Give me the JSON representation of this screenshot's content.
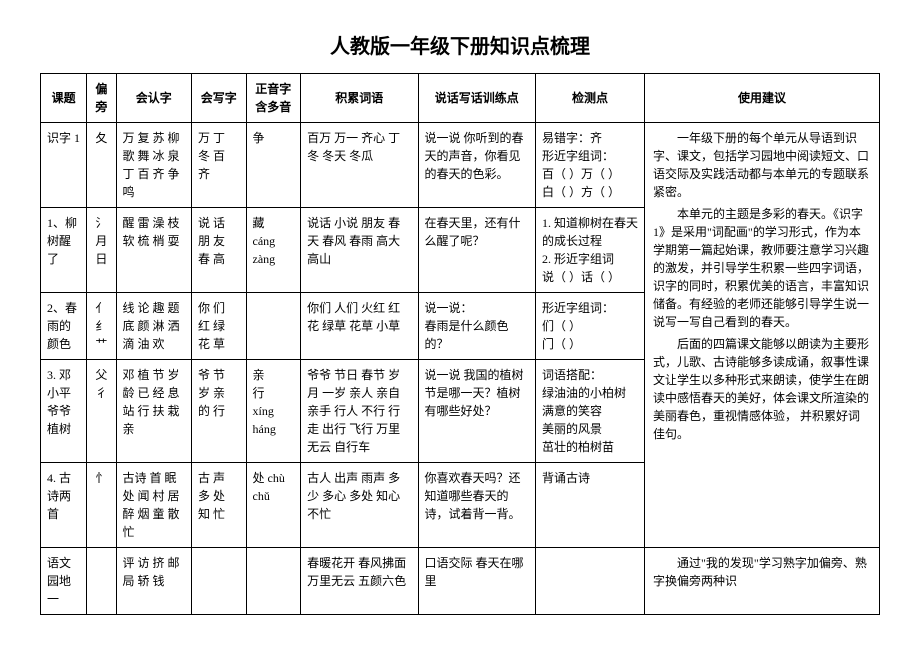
{
  "title": "人教版一年级下册知识点梳理",
  "headers": {
    "lesson": "课题",
    "radical": "偏旁",
    "recognize": "会认字",
    "write": "会写字",
    "pinyin": "正音字含多音",
    "words": "积累词语",
    "practice": "说话写话训练点",
    "check": "检测点",
    "suggest": "使用建议"
  },
  "rows": [
    {
      "lesson": "识字 1",
      "radical": "夂",
      "recognize": "万 复 苏 柳 歌 舞 冰 泉 丁 百 齐 争 鸣",
      "write": "万 丁 冬 百 齐",
      "pinyin": "争",
      "words": "百万 万一 齐心 丁冬 冬天 冬瓜",
      "practice": "说一说 你听到的春天的声音，你看见的春天的色彩。",
      "check": "易错字：齐\n形近字组词：\n百（  ）万（  ）\n白（  ）方（  ）"
    },
    {
      "lesson": "1、柳树醒了",
      "radical": "氵\n月\n日",
      "recognize": "醒 雷 澡 枝 软 梳 梢 耍",
      "write": "说 话 朋 友 春 高",
      "pinyin": "藏\ncáng\n  zàng",
      "words": "说话 小说 朋友 春天 春风 春雨 高大 高山",
      "practice": "在春天里，还有什么醒了呢？",
      "check": "1. 知道柳树在春天的成长过程\n2. 形近字组词\n说（  ）话（  ）"
    },
    {
      "lesson": "2、春雨的颜色",
      "radical": "亻\n纟\n艹",
      "recognize": "线 论 趣 题 底 颜 淋 洒 滴 油 欢",
      "write": "你 们 红 绿 花 草",
      "pinyin": "",
      "words": "你们 人们 火红 红花 绿草 花草 小草",
      "practice": "说一说：\n春雨是什么颜色的？",
      "check": "形近字组词：\n们（  ）\n门（  ）"
    },
    {
      "lesson": "3. 邓小平爷爷植树",
      "radical": "父\n彳",
      "recognize": "邓 植 节 岁 龄 已 经 息 站 行 扶 栽 亲",
      "write": "爷 节 岁 亲 的 行",
      "pinyin": "亲\n行\n  xíng\n  háng",
      "words": "爷爷 节日 春节 岁月 一岁 亲人 亲自 亲手 行人 不行 行走 出行 飞行 万里无云 自行车",
      "practice": "说一说 我国的植树节是哪一天？植树有哪些好处？",
      "check": "词语搭配：\n绿油油的小柏树\n满意的笑容\n美丽的风景\n茁壮的柏树苗"
    },
    {
      "lesson": "4. 古诗两首",
      "radical": "忄",
      "recognize": "古诗 首 眠 处 闻 村 居 醉 烟 童 散 忙",
      "write": "古 声 多 处 知 忙",
      "pinyin": "处 chù\n  chǔ",
      "words": "古人 出声 雨声 多少 多心 多处 知心 不忙",
      "practice": "你喜欢春天吗？还知道哪些春天的诗，试着背一背。",
      "check": "背诵古诗"
    },
    {
      "lesson": "语文园地一",
      "radical": "",
      "recognize": "评 访 挤 邮 局 轿 钱",
      "write": "",
      "pinyin": "",
      "words": "春暖花开 春风拂面 万里无云 五颜六色",
      "practice": "口语交际 春天在哪里",
      "check": ""
    }
  ],
  "suggest_paragraphs": [
    "一年级下册的每个单元从导语到识字、课文，包括学习园地中阅读短文、口语交际及实践活动都与本单元的专题联系紧密。",
    "本单元的主题是多彩的春天。《识字 1》是采用\"词配画\"的学习形式，作为本学期第一篇起始课，教师要注意学习兴趣的激发，并引导学生积累一些四字词语，识字的同时，积累优美的语言，丰富知识储备。有经验的老师还能够引导学生说一说写一写自己看到的春天。",
    "后面的四篇课文能够以朗读为主要形式，儿歌、古诗能够多读成诵，叙事性课文让学生以多种形式来朗读，使学生在朗读中感悟春天的美好，体会课文所渲染的美丽春色，重视情感体验，  并积累好词佳句。"
  ],
  "suggest_last": "通过\"我的发现\"学习熟字加偏旁、熟字换偏旁两种识"
}
